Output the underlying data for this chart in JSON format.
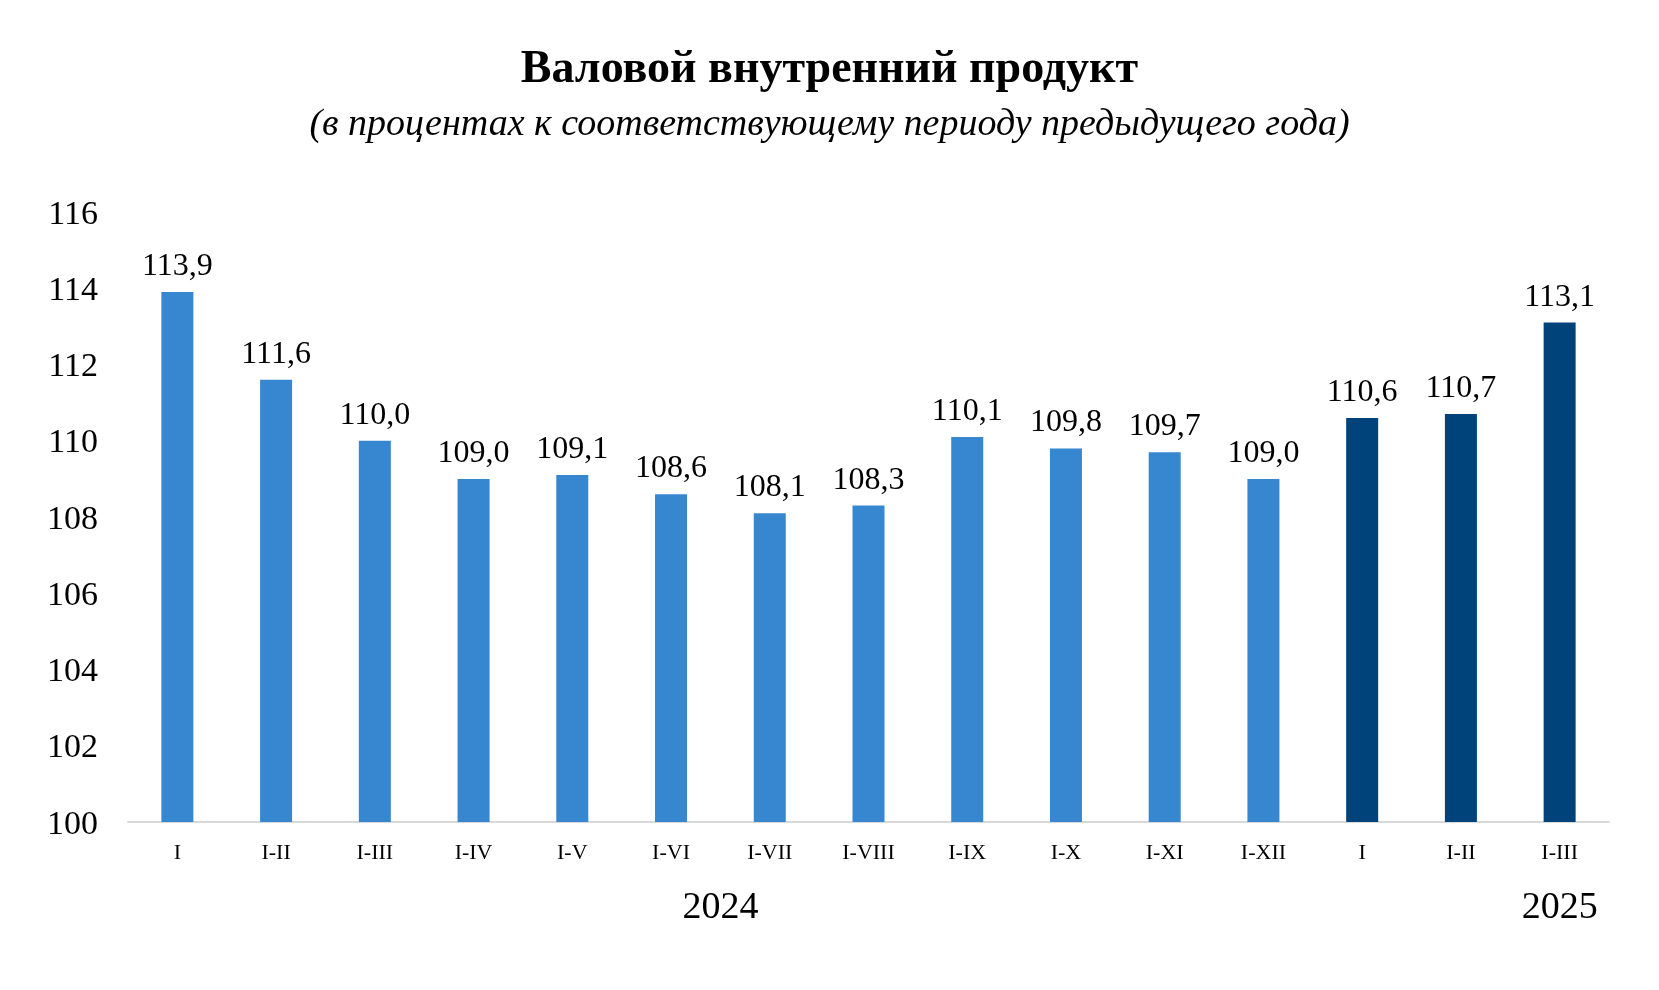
{
  "chart_data": {
    "type": "bar",
    "title": "Валовой внутренний продукт",
    "subtitle": "(в процентах к соответствующему периоду предыдущего года)",
    "categories": [
      "I",
      "I-II",
      "I-III",
      "I-IV",
      "I-V",
      "I-VI",
      "I-VII",
      "I-VIII",
      "I-IX",
      "I-X",
      "I-XI",
      "I-XII",
      "I",
      "I-II",
      "I-III"
    ],
    "values": [
      113.9,
      111.6,
      110.0,
      109.0,
      109.1,
      108.6,
      108.1,
      108.3,
      110.1,
      109.8,
      109.7,
      109.0,
      110.6,
      110.7,
      113.1
    ],
    "value_labels": [
      "113,9",
      "111,6",
      "110,0",
      "109,0",
      "109,1",
      "108,6",
      "108,1",
      "108,3",
      "110,1",
      "109,8",
      "109,7",
      "109,0",
      "110,6",
      "110,7",
      "113,1"
    ],
    "colors": [
      "#3787d0",
      "#3787d0",
      "#3787d0",
      "#3787d0",
      "#3787d0",
      "#3787d0",
      "#3787d0",
      "#3787d0",
      "#3787d0",
      "#3787d0",
      "#3787d0",
      "#3787d0",
      "#00427a",
      "#00427a",
      "#00427a"
    ],
    "ylim": [
      100,
      116
    ],
    "yticks": [
      100,
      102,
      104,
      106,
      108,
      110,
      112,
      114,
      116
    ],
    "grid": false,
    "annotations": [
      "2024",
      "2025"
    ]
  }
}
